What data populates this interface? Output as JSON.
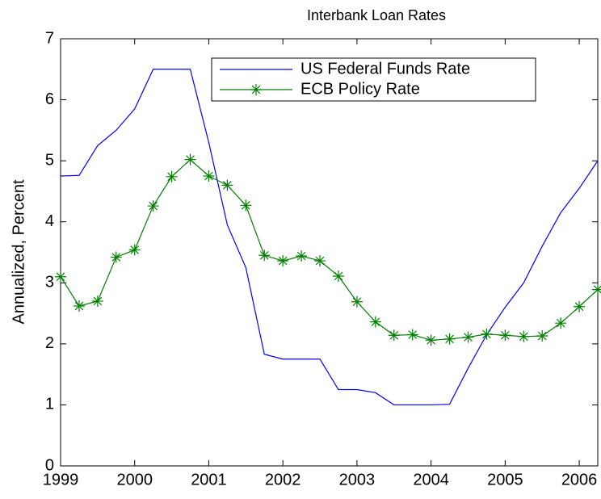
{
  "chart_data": {
    "type": "line",
    "title": "Interbank Loan Rates",
    "y_label": "Annualized, Percent",
    "x": [
      1999,
      1999.25,
      1999.5,
      1999.75,
      2000,
      2000.25,
      2000.5,
      2000.75,
      2001,
      2001.25,
      2001.5,
      2001.75,
      2002,
      2002.25,
      2002.5,
      2002.75,
      2003,
      2003.25,
      2003.5,
      2003.75,
      2004,
      2004.25,
      2004.5,
      2004.75,
      2005,
      2005.25,
      2005.5,
      2005.75,
      2006,
      2006.25
    ],
    "series": [
      {
        "name": "US Federal Funds Rate",
        "color": "#0000ff",
        "marker": "none",
        "values": [
          4.75,
          4.76,
          5.25,
          5.5,
          5.85,
          6.5,
          6.5,
          6.5,
          5.3,
          3.95,
          3.25,
          1.83,
          1.75,
          1.75,
          1.75,
          1.25,
          1.25,
          1.2,
          1.0,
          1.0,
          1.0,
          1.01,
          1.6,
          2.15,
          2.6,
          3.0,
          3.6,
          4.15,
          4.55,
          5.0
        ]
      },
      {
        "name": "ECB Policy Rate",
        "color": "#008000",
        "marker": "asterisk",
        "values": [
          3.1,
          2.62,
          2.7,
          3.42,
          3.54,
          4.26,
          4.74,
          5.02,
          4.75,
          4.6,
          4.27,
          3.45,
          3.36,
          3.44,
          3.36,
          3.11,
          2.69,
          2.36,
          2.14,
          2.15,
          2.06,
          2.08,
          2.11,
          2.16,
          2.14,
          2.12,
          2.13,
          2.34,
          2.61,
          2.89
        ]
      }
    ],
    "xlim": [
      1999,
      2006.25
    ],
    "xticks": [
      1999,
      2000,
      2001,
      2002,
      2003,
      2004,
      2005,
      2006
    ],
    "ylim": [
      0,
      7
    ],
    "yticks": [
      0,
      1,
      2,
      3,
      4,
      5,
      6,
      7
    ],
    "grid": false,
    "legend": "top-right"
  }
}
